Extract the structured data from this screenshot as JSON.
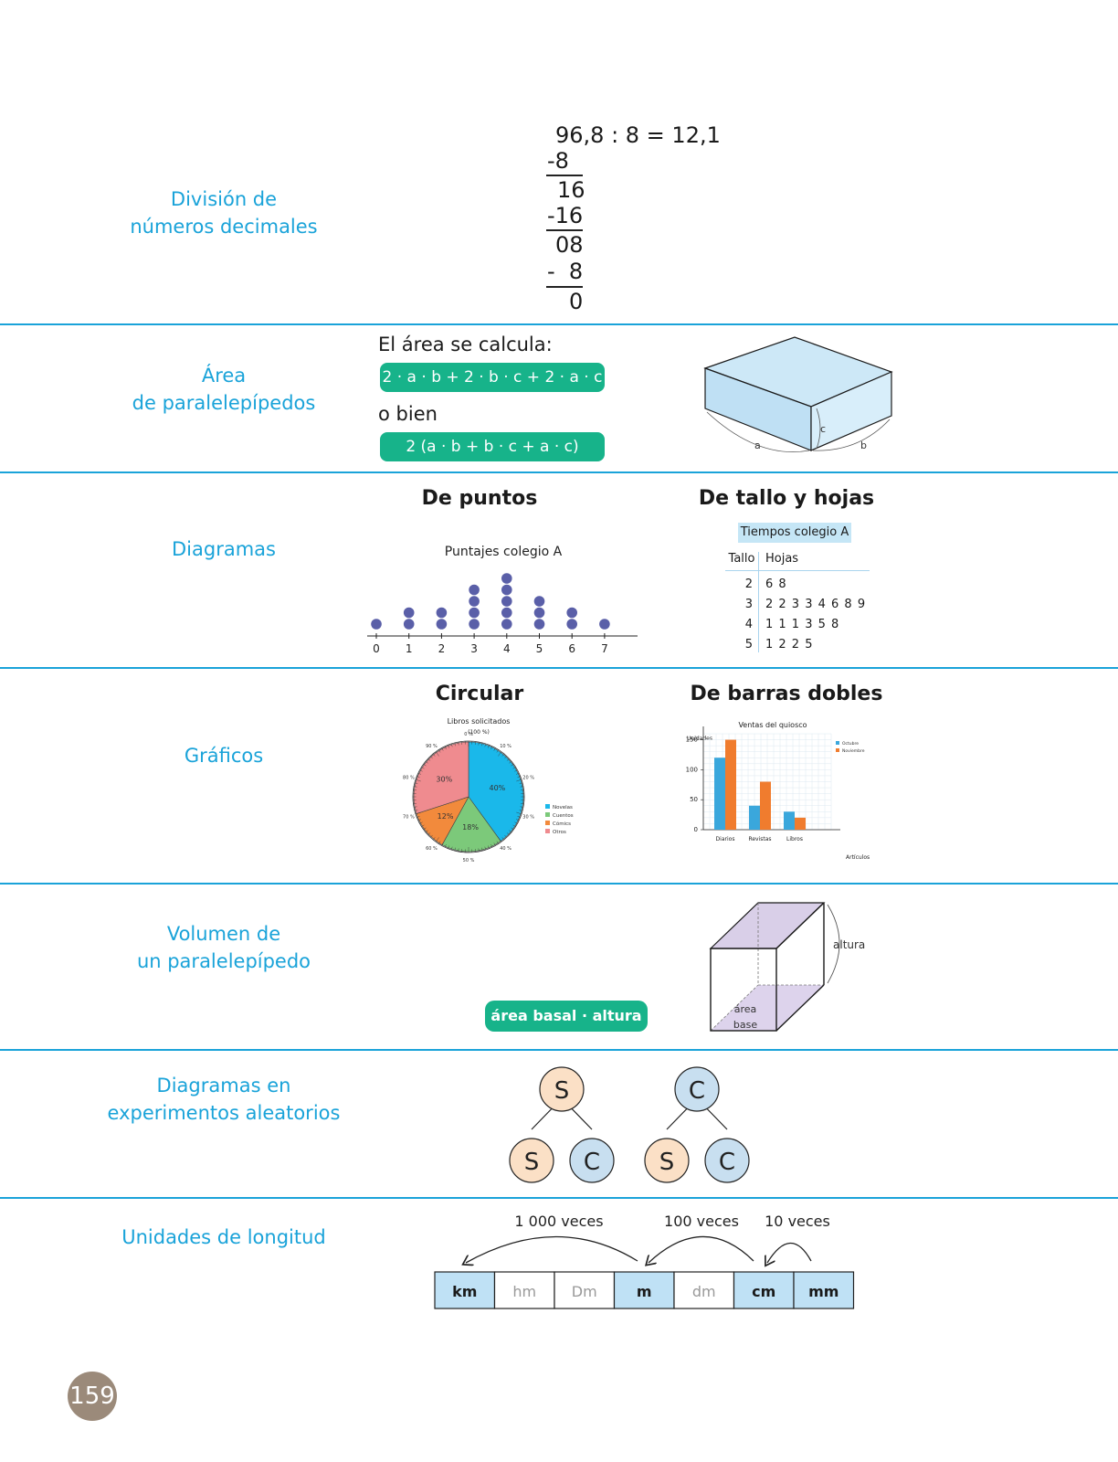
{
  "rows": [
    {
      "label_lines": [
        "División de",
        "números decimales"
      ]
    },
    {
      "label_lines": [
        "Área",
        "de paralelepípedos"
      ]
    },
    {
      "label_lines": [
        "Diagramas"
      ]
    },
    {
      "label_lines": [
        "Gráficos"
      ]
    },
    {
      "label_lines": [
        "Volumen de",
        "un paralelepípedo"
      ]
    },
    {
      "label_lines": [
        "Diagramas en",
        "experimentos aleatorios"
      ]
    },
    {
      "label_lines": [
        "Unidades de longitud"
      ]
    }
  ],
  "division": {
    "equation": "96,8 : 8 = 12,1",
    "steps": [
      "-8",
      "16",
      "-16",
      "08",
      "-  8",
      "0"
    ]
  },
  "area": {
    "intro": "El área se calcula:",
    "formula1": "2 · a · b + 2 · b · c + 2 · a · c",
    "or": "o bien",
    "formula2": "2 (a · b + b · c + a · c)",
    "labels": {
      "a": "a",
      "b": "b",
      "c": "c"
    }
  },
  "diagrams": {
    "dot_title": "De puntos",
    "stem_title": "De tallo y hojas",
    "dot_plot": {
      "title": "Puntajes colegio A",
      "ticks": [
        "0",
        "1",
        "2",
        "3",
        "4",
        "5",
        "6",
        "7"
      ],
      "counts": [
        1,
        2,
        2,
        4,
        5,
        3,
        2,
        1
      ]
    },
    "stem_leaf": {
      "title": "Tiempos colegio A",
      "headers": [
        "Tallo",
        "Hojas"
      ],
      "rows": [
        {
          "stem": "2",
          "leaves": "6 8"
        },
        {
          "stem": "3",
          "leaves": "2 2 3 3 4 6 8 9"
        },
        {
          "stem": "4",
          "leaves": "1 1 1 3 5 8"
        },
        {
          "stem": "5",
          "leaves": "1 2 2 5"
        }
      ]
    }
  },
  "charts": {
    "pie_title": "Circular",
    "bar_title": "De barras dobles"
  },
  "chart_data": [
    {
      "type": "pie",
      "title": "Libros solicitados",
      "subtitle": "(100 %)",
      "categories": [
        "Novelas",
        "Cuentos",
        "Cómics",
        "Otros"
      ],
      "values": [
        40,
        18,
        12,
        30
      ],
      "value_labels": [
        "40%",
        "18%",
        "12%",
        "30%"
      ],
      "colors": [
        "#1ab8ea",
        "#7cc97a",
        "#f28a3c",
        "#ef8b8f"
      ],
      "scale_labels": [
        "0 %",
        "10 %",
        "20 %",
        "30 %",
        "40 %",
        "50 %",
        "60 %",
        "70 %",
        "80 %",
        "90 %"
      ],
      "legend": "right"
    },
    {
      "type": "bar",
      "title": "Ventas del quiosco",
      "xlabel": "Artículos",
      "ylabel": "Unidades",
      "categories": [
        "Diarios",
        "Revistas",
        "Libros"
      ],
      "series": [
        {
          "name": "Octubre",
          "values": [
            120,
            40,
            30
          ],
          "color": "#3aa7dc"
        },
        {
          "name": "Noviembre",
          "values": [
            150,
            80,
            20
          ],
          "color": "#f07c2e"
        }
      ],
      "yticks": [
        "0",
        "50",
        "100",
        "150"
      ],
      "ylim": [
        0,
        160
      ],
      "grid": true,
      "legend": "top-right"
    }
  ],
  "volume": {
    "formula": "área basal · altura",
    "height_label": "altura",
    "base_label_1": "área",
    "base_label_2": "base"
  },
  "tree": {
    "left": {
      "root": "S",
      "children": [
        "S",
        "C"
      ]
    },
    "right": {
      "root": "C",
      "children": [
        "S",
        "C"
      ]
    }
  },
  "units": {
    "cells": [
      "km",
      "hm",
      "Dm",
      "m",
      "dm",
      "cm",
      "mm"
    ],
    "arrows": [
      "1 000 veces",
      "100 veces",
      "10 veces"
    ]
  },
  "page_number": "159"
}
